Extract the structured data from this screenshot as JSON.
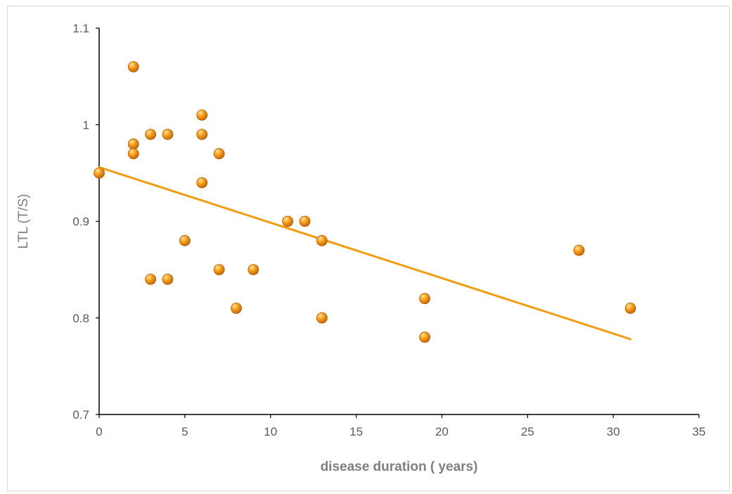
{
  "chart_data": {
    "type": "scatter",
    "xlabel": "disease duration ( years)",
    "ylabel": "LTL (T/S)",
    "xlim": [
      0,
      35
    ],
    "ylim": [
      0.7,
      1.1
    ],
    "x_ticks": [
      "0",
      "5",
      "10",
      "15",
      "20",
      "25",
      "30",
      "35"
    ],
    "y_ticks": [
      "0.7",
      "0.8",
      "0.9",
      "1",
      "1.1"
    ],
    "grid": false,
    "legend": "none",
    "marker_color": "#f39c12",
    "trendline_color": "#f39c12",
    "points": [
      {
        "x": 0,
        "y": 0.95
      },
      {
        "x": 2,
        "y": 1.06
      },
      {
        "x": 2,
        "y": 0.98
      },
      {
        "x": 2,
        "y": 0.97
      },
      {
        "x": 3,
        "y": 0.99
      },
      {
        "x": 3,
        "y": 0.84
      },
      {
        "x": 4,
        "y": 0.99
      },
      {
        "x": 4,
        "y": 0.84
      },
      {
        "x": 5,
        "y": 0.88
      },
      {
        "x": 6,
        "y": 1.01
      },
      {
        "x": 6,
        "y": 0.99
      },
      {
        "x": 6,
        "y": 0.94
      },
      {
        "x": 7,
        "y": 0.97
      },
      {
        "x": 7,
        "y": 0.85
      },
      {
        "x": 8,
        "y": 0.81
      },
      {
        "x": 9,
        "y": 0.85
      },
      {
        "x": 11,
        "y": 0.9
      },
      {
        "x": 12,
        "y": 0.9
      },
      {
        "x": 13,
        "y": 0.88
      },
      {
        "x": 13,
        "y": 0.8
      },
      {
        "x": 19,
        "y": 0.82
      },
      {
        "x": 19,
        "y": 0.78
      },
      {
        "x": 28,
        "y": 0.87
      },
      {
        "x": 31,
        "y": 0.81
      }
    ],
    "trendline": {
      "type": "linear",
      "x": [
        0,
        31
      ],
      "y": [
        0.956,
        0.778
      ]
    }
  }
}
